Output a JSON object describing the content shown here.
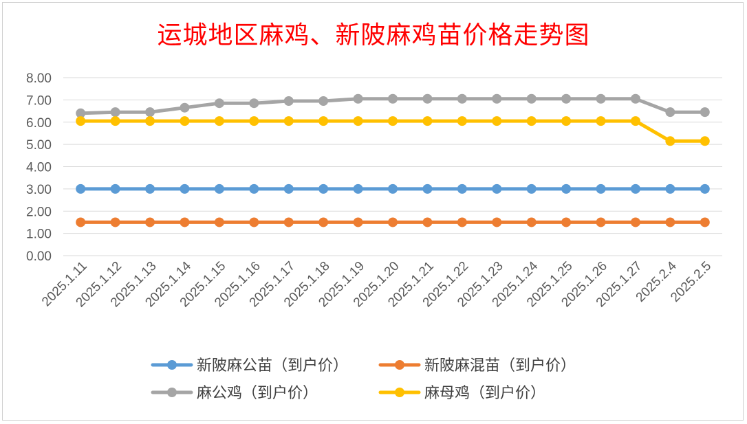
{
  "chart_data": {
    "type": "line",
    "title": "运城地区麻鸡、新陂麻鸡苗价格走势图",
    "xlabel": "",
    "ylabel": "",
    "ylim": [
      0,
      8
    ],
    "y_ticks": [
      "0.00",
      "1.00",
      "2.00",
      "3.00",
      "4.00",
      "5.00",
      "6.00",
      "7.00",
      "8.00"
    ],
    "categories": [
      "2025.1.11",
      "2025.1.12",
      "2025.1.13",
      "2025.1.14",
      "2025.1.15",
      "2025.1.16",
      "2025.1.17",
      "2025.1.18",
      "2025.1.19",
      "2025.1.20",
      "2025.1.21",
      "2025.1.22",
      "2025.1.23",
      "2025.1.24",
      "2025.1.25",
      "2025.1.26",
      "2025.1.27",
      "2025.2.4",
      "2025.2.5"
    ],
    "grid": true,
    "legend_position": "bottom",
    "series": [
      {
        "name": "新陂麻公苗（到户价）",
        "color": "#5b9bd5",
        "values": [
          3.0,
          3.0,
          3.0,
          3.0,
          3.0,
          3.0,
          3.0,
          3.0,
          3.0,
          3.0,
          3.0,
          3.0,
          3.0,
          3.0,
          3.0,
          3.0,
          3.0,
          3.0,
          3.0
        ]
      },
      {
        "name": "新陂麻混苗（到户价）",
        "color": "#ed7d31",
        "values": [
          1.5,
          1.5,
          1.5,
          1.5,
          1.5,
          1.5,
          1.5,
          1.5,
          1.5,
          1.5,
          1.5,
          1.5,
          1.5,
          1.5,
          1.5,
          1.5,
          1.5,
          1.5,
          1.5
        ]
      },
      {
        "name": "麻公鸡（到户价）",
        "color": "#a5a5a5",
        "values": [
          6.4,
          6.45,
          6.45,
          6.65,
          6.85,
          6.85,
          6.95,
          6.95,
          7.05,
          7.05,
          7.05,
          7.05,
          7.05,
          7.05,
          7.05,
          7.05,
          7.05,
          6.45,
          6.45
        ]
      },
      {
        "name": "麻母鸡（到户价）",
        "color": "#ffc000",
        "values": [
          6.05,
          6.05,
          6.05,
          6.05,
          6.05,
          6.05,
          6.05,
          6.05,
          6.05,
          6.05,
          6.05,
          6.05,
          6.05,
          6.05,
          6.05,
          6.05,
          6.05,
          5.15,
          5.15
        ]
      }
    ]
  }
}
